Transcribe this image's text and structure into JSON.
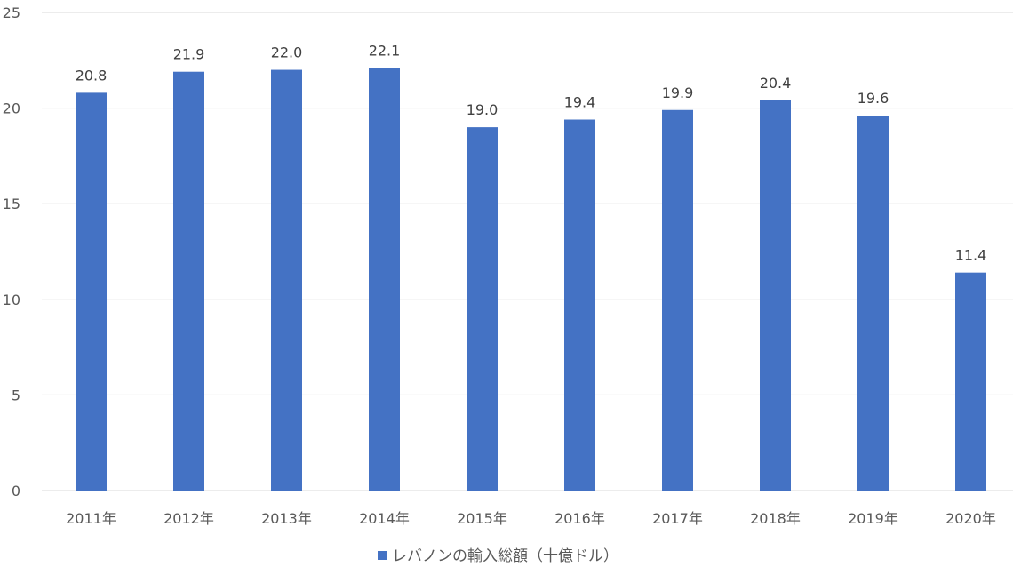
{
  "chart_data": {
    "type": "bar",
    "categories": [
      "2011年",
      "2012年",
      "2013年",
      "2014年",
      "2015年",
      "2016年",
      "2017年",
      "2018年",
      "2019年",
      "2020年"
    ],
    "series": [
      {
        "name": "レバノンの輸入総額（十億ドル）",
        "values": [
          20.8,
          21.9,
          22.0,
          22.1,
          19.0,
          19.4,
          19.9,
          20.4,
          19.6,
          11.4
        ],
        "data_labels": [
          "20.8",
          "21.9",
          "22.0",
          "22.1",
          "19.0",
          "19.4",
          "19.9",
          "20.4",
          "19.6",
          "11.4"
        ]
      }
    ],
    "ylim": [
      0,
      25
    ],
    "yticks": [
      0,
      5,
      10,
      15,
      20,
      25
    ],
    "grid": true,
    "legend_position": "bottom",
    "colors": {
      "bar": "#4472C4",
      "grid": "#d9d9d9"
    }
  }
}
